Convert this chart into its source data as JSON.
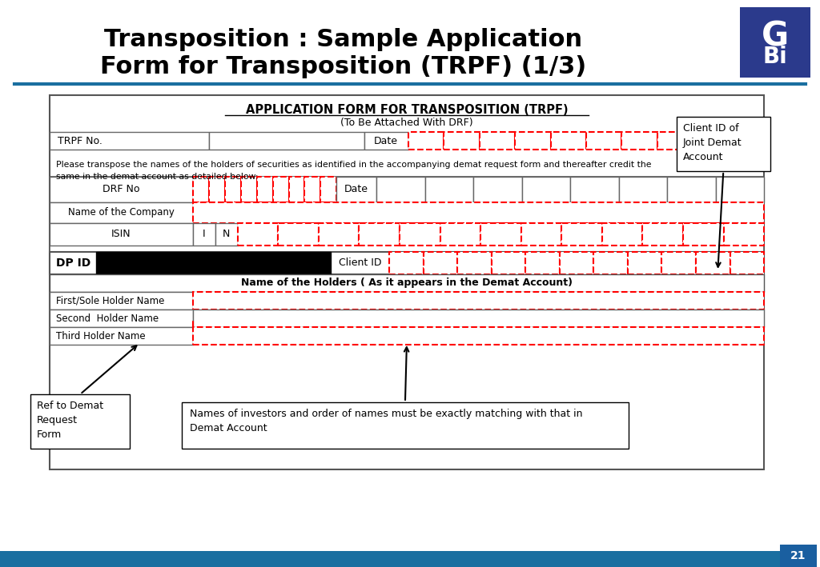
{
  "title_line1": "Transposition : Sample Application",
  "title_line2": "Form for Transposition (TRPF) (1/3)",
  "bg_color": "#ffffff",
  "header_blue": "#1a6fa0",
  "form_title": "APPLICATION FORM FOR TRANSPOSITION (TRPF)",
  "form_subtitle": "(To Be Attached With DRF)",
  "slide_num": "21",
  "annotation1": "Ref to Demat\nRequest\nForm",
  "annotation2": "Names of investors and order of names must be exactly matching with that in\nDemat Account",
  "annotation3": "Client ID of\nJoint Demat\nAccount"
}
